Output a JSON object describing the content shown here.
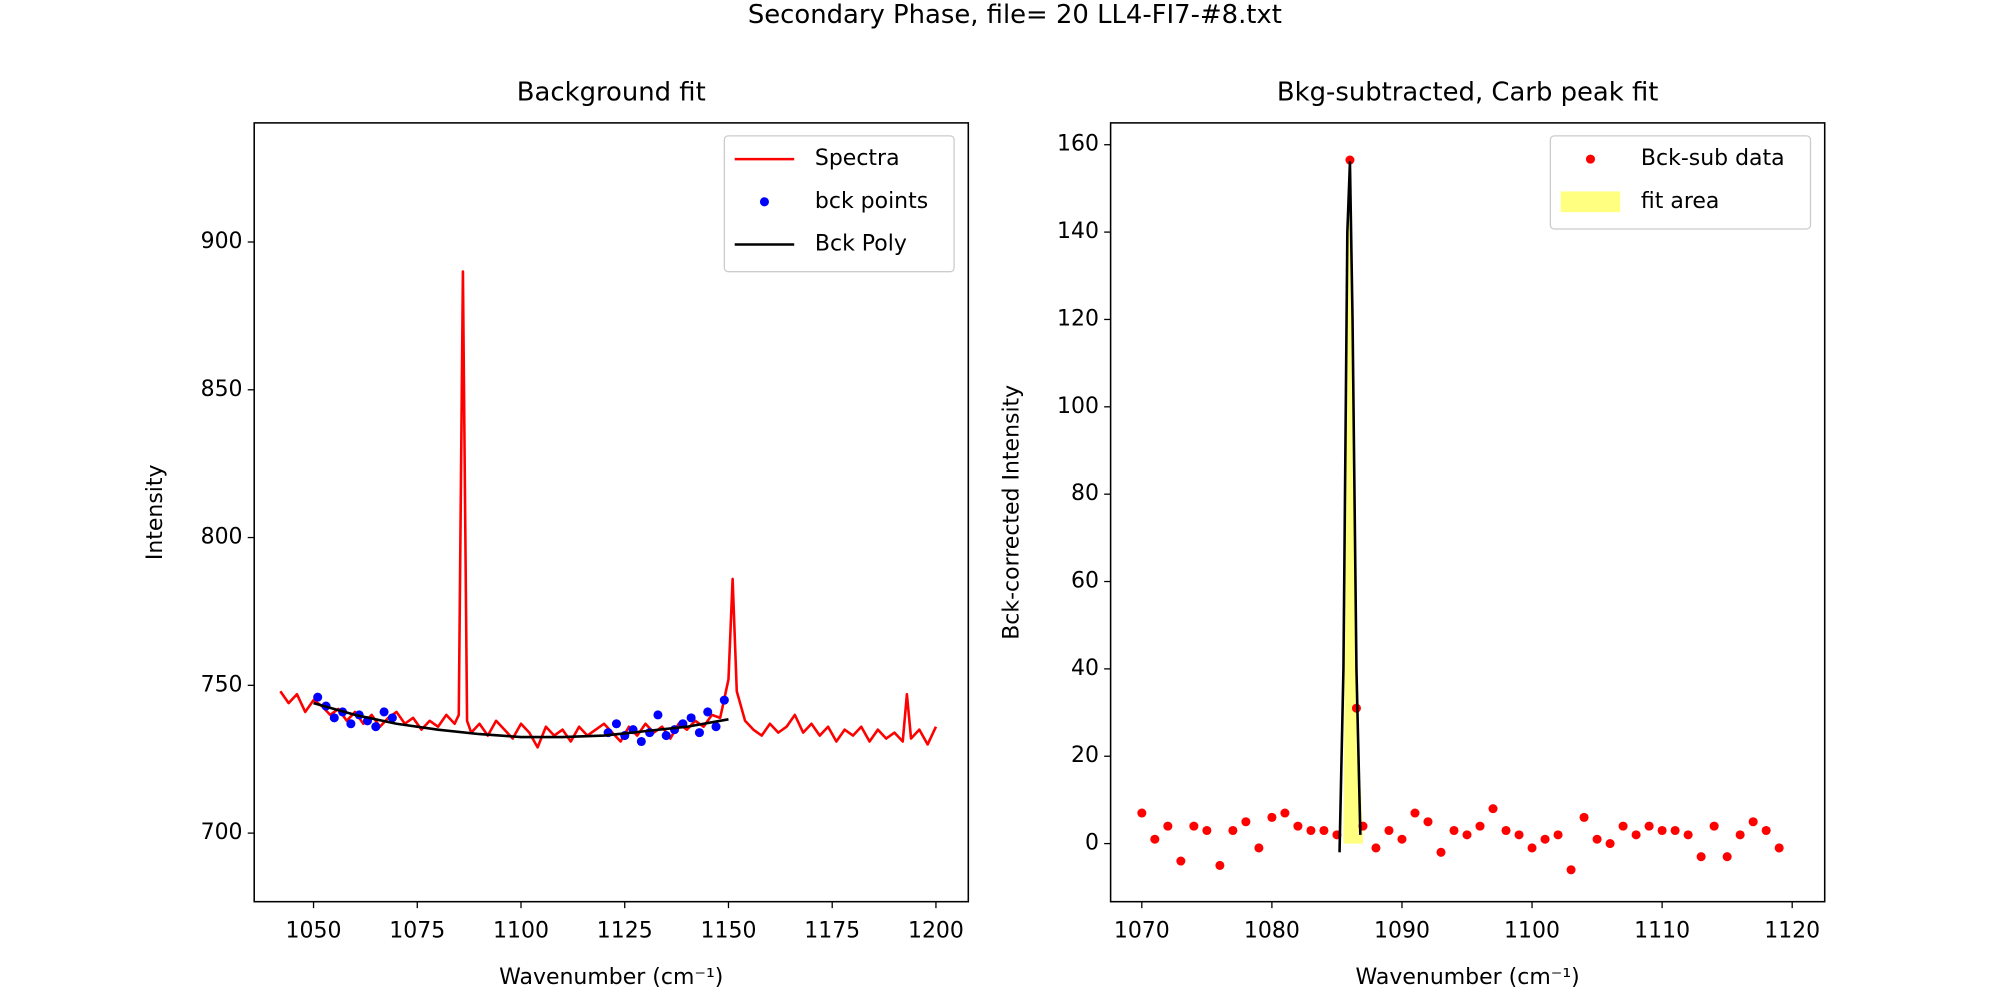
{
  "title": "Secondary Phase, file= 20 LL4-FI7-#8.txt",
  "chart_data": [
    {
      "type": "line",
      "title": "Background fit",
      "xlabel": "Wavenumber (cm⁻¹)",
      "ylabel": "Intensity",
      "xlim": [
        1035.7,
        1207.8
      ],
      "ylim": [
        676.8,
        940.3
      ],
      "xticks": [
        1050,
        1075,
        1100,
        1125,
        1150,
        1175,
        1200
      ],
      "yticks": [
        700,
        750,
        800,
        850,
        900
      ],
      "grid": false,
      "legend": "upper right",
      "series": [
        {
          "name": "Spectra",
          "type": "line",
          "color": "#ff0000",
          "x": [
            1042,
            1044,
            1046,
            1048,
            1050,
            1052,
            1054,
            1056,
            1058,
            1060,
            1062,
            1064,
            1066,
            1068,
            1070,
            1072,
            1074,
            1076,
            1078,
            1080,
            1082,
            1084,
            1085,
            1086,
            1087,
            1088,
            1090,
            1092,
            1094,
            1096,
            1098,
            1100,
            1102,
            1104,
            1106,
            1108,
            1110,
            1112,
            1114,
            1116,
            1118,
            1120,
            1122,
            1124,
            1126,
            1128,
            1130,
            1132,
            1134,
            1136,
            1138,
            1140,
            1142,
            1144,
            1146,
            1148,
            1150,
            1151,
            1152,
            1154,
            1156,
            1158,
            1160,
            1162,
            1164,
            1166,
            1168,
            1170,
            1172,
            1174,
            1176,
            1178,
            1180,
            1182,
            1184,
            1186,
            1188,
            1190,
            1192,
            1193,
            1194,
            1196,
            1198,
            1200
          ],
          "values": [
            748,
            744,
            747,
            741,
            745,
            743,
            740,
            742,
            738,
            741,
            737,
            740,
            736,
            739,
            741,
            737,
            739,
            735,
            738,
            736,
            740,
            737,
            740,
            890,
            738,
            734,
            737,
            733,
            738,
            735,
            732,
            737,
            734,
            729,
            736,
            733,
            735,
            731,
            736,
            733,
            735,
            737,
            734,
            731,
            736,
            733,
            737,
            734,
            736,
            732,
            737,
            735,
            738,
            736,
            740,
            739,
            752,
            786,
            748,
            738,
            735,
            733,
            737,
            734,
            736,
            740,
            734,
            737,
            733,
            736,
            731,
            735,
            733,
            736,
            731,
            735,
            732,
            734,
            731,
            747,
            732,
            735,
            730,
            736
          ]
        },
        {
          "name": "bck points",
          "type": "scatter",
          "color": "#0000ff",
          "x": [
            1051,
            1053,
            1055,
            1057,
            1059,
            1061,
            1063,
            1065,
            1067,
            1069,
            1121,
            1123,
            1125,
            1127,
            1129,
            1131,
            1133,
            1135,
            1137,
            1139,
            1141,
            1143,
            1145,
            1147,
            1149
          ],
          "values": [
            746,
            743,
            739,
            741,
            737,
            740,
            738,
            736,
            741,
            739,
            734,
            737,
            733,
            735,
            731,
            734,
            740,
            733,
            735,
            737,
            739,
            734,
            741,
            736,
            745
          ]
        },
        {
          "name": "Bck Poly",
          "type": "line",
          "color": "#000000",
          "x": [
            1050,
            1060,
            1070,
            1080,
            1090,
            1100,
            1110,
            1120,
            1130,
            1140,
            1150
          ],
          "values": [
            744,
            740,
            737,
            735,
            733.5,
            732.5,
            732.5,
            733,
            734.5,
            736,
            738.5
          ]
        }
      ]
    },
    {
      "type": "scatter",
      "title": "Bkg-subtracted, Carb peak fit",
      "xlabel": "Wavenumber (cm⁻¹)",
      "ylabel": "Bck-corrected Intensity",
      "xlim": [
        1067.6,
        1122.5
      ],
      "ylim": [
        -13.3,
        165.0
      ],
      "xticks": [
        1070,
        1080,
        1090,
        1100,
        1110,
        1120
      ],
      "yticks": [
        0,
        20,
        40,
        60,
        80,
        100,
        120,
        140,
        160
      ],
      "grid": false,
      "legend": "upper right",
      "series": [
        {
          "name": "Bck-sub data",
          "type": "scatter",
          "color": "#ff0000",
          "x": [
            1070,
            1071,
            1072,
            1073,
            1074,
            1075,
            1076,
            1077,
            1078,
            1079,
            1080,
            1081,
            1082,
            1083,
            1084,
            1085,
            1086,
            1086.5,
            1087,
            1088,
            1089,
            1090,
            1091,
            1092,
            1093,
            1094,
            1095,
            1096,
            1097,
            1098,
            1099,
            1100,
            1101,
            1102,
            1103,
            1104,
            1105,
            1106,
            1107,
            1108,
            1109,
            1110,
            1111,
            1112,
            1113,
            1114,
            1115,
            1116,
            1117,
            1118,
            1119
          ],
          "values": [
            7,
            1,
            4,
            -4,
            4,
            3,
            -5,
            3,
            5,
            -1,
            6,
            7,
            4,
            3,
            3,
            2,
            156.5,
            31,
            4,
            -1,
            3,
            1,
            7,
            5,
            -2,
            3,
            2,
            4,
            8,
            3,
            2,
            -1,
            1,
            2,
            -6,
            6,
            1,
            0,
            4,
            2,
            4,
            3,
            3,
            2,
            -3,
            4,
            -3,
            2,
            5,
            3,
            -1
          ]
        },
        {
          "name": "fit area",
          "type": "area",
          "color": "#ffff80",
          "x": [
            1085.5,
            1085.9,
            1086,
            1086.5,
            1087
          ],
          "values": [
            0,
            150,
            156.5,
            31,
            3
          ]
        },
        {
          "type": "line",
          "color": "#000000",
          "x": [
            1085.2,
            1085.5,
            1085.8,
            1086,
            1086.2,
            1086.5,
            1086.8
          ],
          "values": [
            -2,
            40,
            140,
            156,
            120,
            40,
            2
          ]
        }
      ]
    }
  ]
}
